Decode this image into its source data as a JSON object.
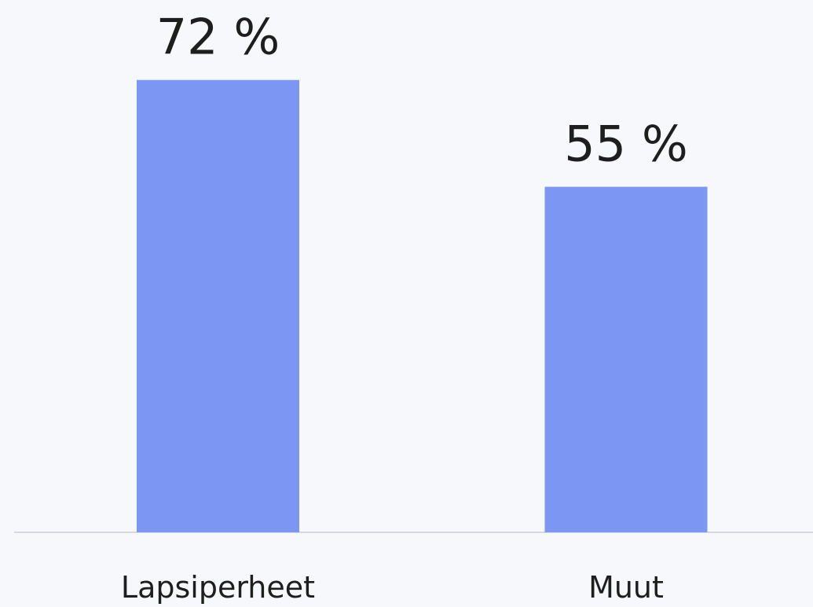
{
  "chart_data": {
    "type": "bar",
    "categories": [
      "Lapsiperheet",
      "Muut"
    ],
    "values": [
      72,
      55
    ],
    "value_labels": [
      "72 %",
      "55 %"
    ],
    "color": "#7b96f3"
  }
}
